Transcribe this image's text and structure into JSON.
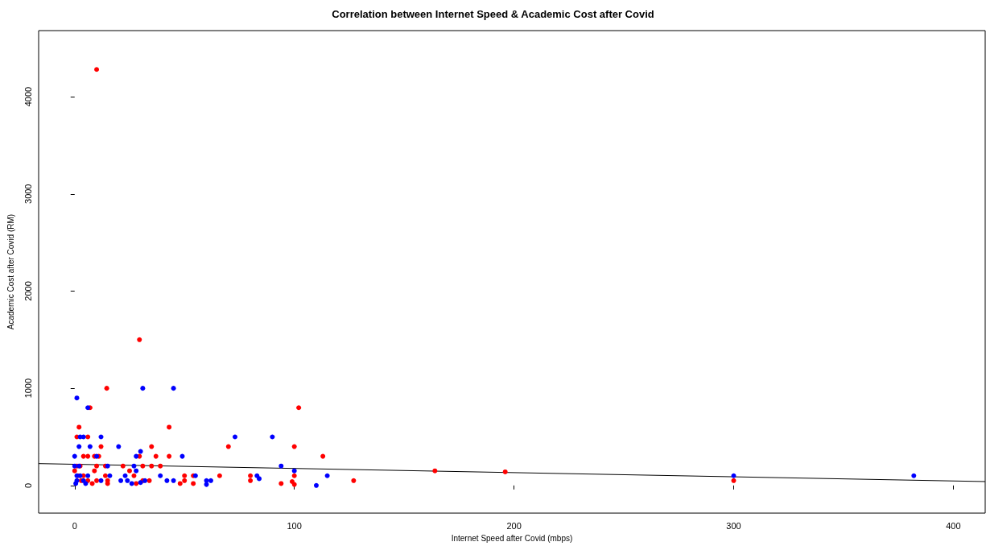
{
  "chart_data": {
    "type": "scatter",
    "title": "Correlation between Internet Speed & Academic Cost after Covid",
    "xlabel": "Internet Speed after Covid (mbps)",
    "ylabel": "Academic Cost after Covid (RM)",
    "xlim": [
      -16.4,
      414.5
    ],
    "xticks": [
      0,
      100,
      200,
      300,
      400
    ],
    "ylim": [
      -284,
      4680
    ],
    "yticks": [
      0,
      1000,
      2000,
      3000,
      4000
    ],
    "grid": false,
    "marker": "circle",
    "series": [
      {
        "color": "#ff0000",
        "x": [
          10,
          29.5,
          14.6,
          7,
          102,
          2,
          43,
          1,
          6,
          12,
          35,
          70,
          100,
          4,
          6,
          9,
          11,
          29.5,
          37,
          43,
          113,
          1,
          2.5,
          10,
          14,
          22,
          31,
          35,
          39,
          0,
          9,
          25,
          164,
          196,
          1.5,
          4,
          14,
          27,
          50,
          54,
          66,
          80,
          100,
          3,
          6,
          10,
          15,
          31,
          34,
          50,
          80,
          127,
          300,
          99,
          8,
          15,
          48,
          54,
          94,
          100,
          28
        ],
        "values": [
          4280,
          1500,
          1000,
          800,
          800,
          600,
          600,
          500,
          500,
          400,
          400,
          400,
          400,
          300,
          300,
          300,
          300,
          300,
          300,
          300,
          300,
          200,
          200,
          200,
          200,
          200,
          200,
          200,
          200,
          150,
          150,
          150,
          150,
          140,
          100,
          100,
          100,
          100,
          100,
          100,
          100,
          100,
          100,
          50,
          50,
          50,
          50,
          50,
          50,
          50,
          50,
          50,
          50,
          40,
          20,
          20,
          20,
          20,
          20,
          10,
          20
        ]
      },
      {
        "color": "#0000ff",
        "x": [
          1,
          6,
          31,
          45,
          2.5,
          4,
          12,
          73,
          90,
          2,
          7,
          20,
          30,
          0,
          10,
          28,
          49,
          0,
          2,
          15,
          27,
          94,
          28,
          100,
          1,
          2.5,
          6,
          16,
          23,
          39,
          55,
          83,
          115,
          300,
          382,
          1,
          4,
          12,
          21,
          24,
          32,
          42,
          45,
          60,
          62,
          84,
          0.5,
          5,
          26,
          30,
          60,
          110
        ],
        "values": [
          900,
          800,
          1000,
          1000,
          500,
          500,
          500,
          500,
          500,
          400,
          400,
          400,
          350,
          300,
          300,
          300,
          300,
          200,
          200,
          200,
          200,
          200,
          150,
          150,
          100,
          100,
          100,
          100,
          100,
          100,
          100,
          100,
          100,
          100,
          100,
          50,
          50,
          50,
          50,
          50,
          50,
          50,
          50,
          50,
          50,
          70,
          20,
          20,
          20,
          30,
          10,
          0
        ]
      },
      {
        "type": "line",
        "color": "#000000",
        "line_style": "solid",
        "marker": "none",
        "x": [
          -16.4,
          414.5
        ],
        "values": [
          225,
          40
        ]
      }
    ]
  }
}
